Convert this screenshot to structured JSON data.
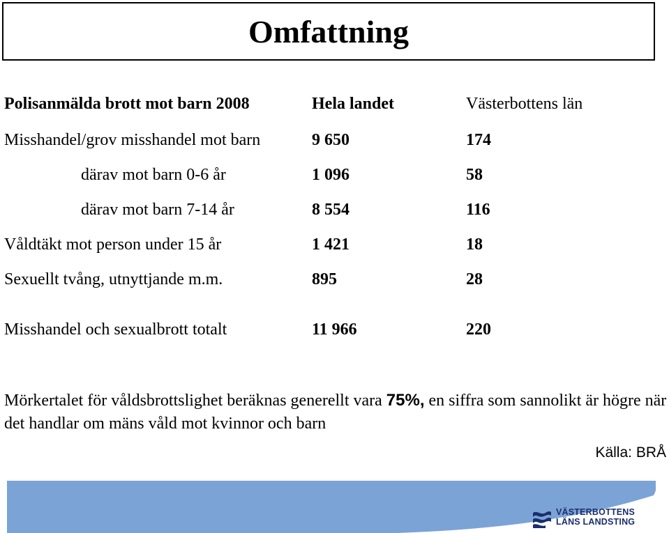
{
  "title": "Omfattning",
  "table": {
    "header": {
      "label": "Polisanmälda brott mot barn 2008",
      "col1": "Hela landet",
      "col2": "Västerbottens län"
    },
    "rows": [
      {
        "label": "Misshandel/grov misshandel mot barn",
        "col1": "9 650",
        "col2": "174",
        "indent": false
      },
      {
        "label": "därav mot barn 0-6 år",
        "col1": "1 096",
        "col2": "58",
        "indent": true
      },
      {
        "label": "därav mot barn 7-14 år",
        "col1": "8 554",
        "col2": "116",
        "indent": true
      },
      {
        "label": "Våldtäkt mot person under 15 år",
        "col1": "1 421",
        "col2": "18",
        "indent": false
      },
      {
        "label": "Sexuellt tvång, utnyttjande m.m.",
        "col1": "895",
        "col2": "28",
        "indent": false
      }
    ],
    "total": {
      "label": "Misshandel och sexualbrott totalt",
      "col1": "11 966",
      "col2": "220"
    }
  },
  "footnote": {
    "before": "Mörkertalet för våldsbrottslighet beräknas generellt vara ",
    "highlight": "75%,",
    "after": " en siffra som sannolikt är högre när det handlar om mäns våld mot kvinnor och barn"
  },
  "source": "Källa: BRÅ",
  "logo": {
    "line1": "VÄSTERBOTTENS",
    "line2": "LÄNS LANDSTING",
    "icon": "wave-logo-icon"
  },
  "colors": {
    "banner": "#7ba3d6",
    "logo_text": "#1a2e6e"
  }
}
